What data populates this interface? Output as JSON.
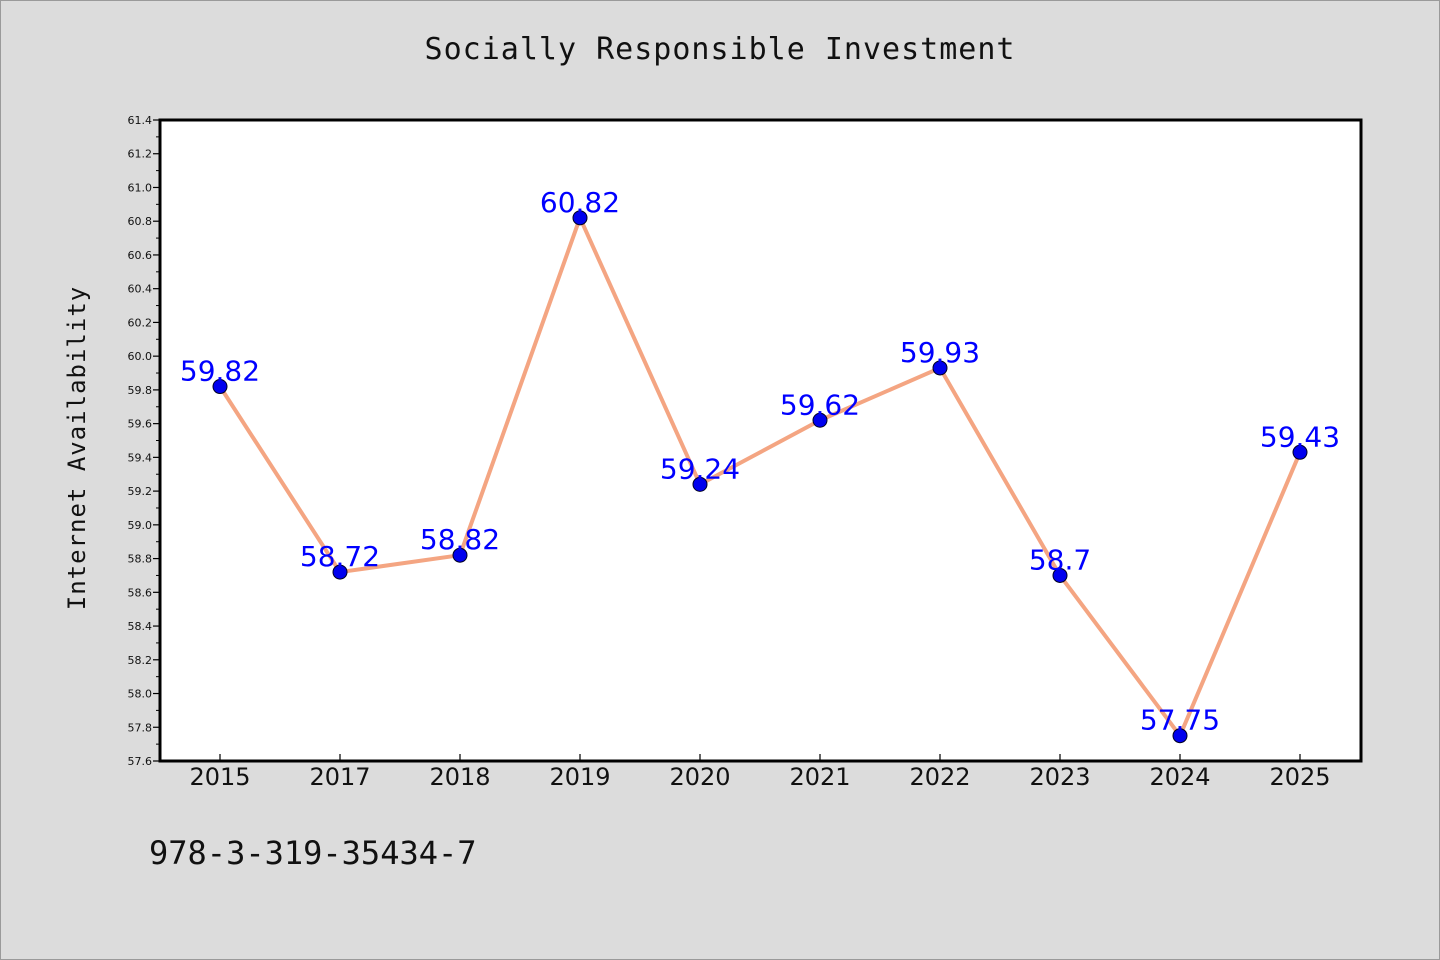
{
  "chart_data": {
    "type": "line",
    "title": "Socially Responsible Investment",
    "xlabel": "",
    "ylabel": "Internet Availability",
    "categories": [
      "2015",
      "2017",
      "2018",
      "2019",
      "2020",
      "2021",
      "2022",
      "2023",
      "2024",
      "2025"
    ],
    "series": [
      {
        "values": [
          59.82,
          58.72,
          58.82,
          60.82,
          59.24,
          59.62,
          59.93,
          58.7,
          57.75,
          59.43
        ],
        "labels": [
          "59.82",
          "58.72",
          "58.82",
          "60.82",
          "59.24",
          "59.62",
          "59.93",
          "58.7",
          "57.75",
          "59.43"
        ]
      }
    ],
    "ylim": [
      57.6,
      61.4
    ],
    "yticks": [
      "57.6",
      "57.8",
      "58.0",
      "58.2",
      "58.4",
      "58.6",
      "58.8",
      "59.0",
      "59.2",
      "59.4",
      "59.6",
      "59.8",
      "60.0",
      "60.2",
      "60.4",
      "60.6",
      "60.8",
      "61.0",
      "61.2",
      "61.4"
    ],
    "grid": false,
    "line_color": "#f4a582",
    "marker_color": "#0000ee",
    "label_color": "#0000ff"
  },
  "footer": {
    "identifier": "978-3-319-35434-7"
  }
}
